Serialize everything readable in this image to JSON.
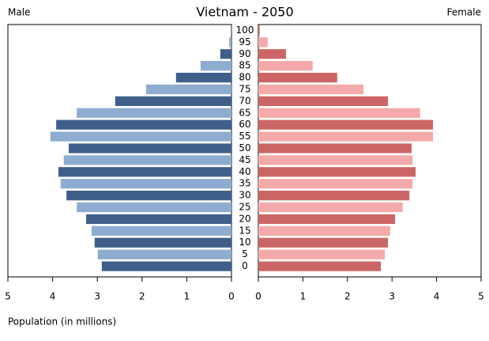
{
  "chart_data": {
    "type": "pyramid",
    "title": "Vietnam - 2050",
    "left_label": "Male",
    "right_label": "Female",
    "xlabel": "Population (in millions)",
    "categories": [
      "0",
      "5",
      "10",
      "15",
      "20",
      "25",
      "30",
      "35",
      "40",
      "45",
      "50",
      "55",
      "60",
      "65",
      "70",
      "75",
      "80",
      "85",
      "90",
      "95",
      "100"
    ],
    "series": [
      {
        "name": "Male",
        "side": "left",
        "colors": [
          "#3f5f8a",
          "#8eacd0"
        ],
        "values": [
          2.9,
          2.99,
          3.06,
          3.13,
          3.25,
          3.46,
          3.69,
          3.82,
          3.87,
          3.75,
          3.64,
          4.05,
          3.92,
          3.46,
          2.6,
          1.91,
          1.24,
          0.69,
          0.25,
          0.05,
          0.01
        ]
      },
      {
        "name": "Female",
        "side": "right",
        "colors": [
          "#cc6666",
          "#f4aaaa"
        ],
        "values": [
          2.75,
          2.84,
          2.91,
          2.96,
          3.07,
          3.24,
          3.39,
          3.46,
          3.53,
          3.46,
          3.44,
          3.92,
          3.92,
          3.63,
          2.91,
          2.36,
          1.77,
          1.22,
          0.62,
          0.21,
          0.03
        ]
      }
    ],
    "xlim": [
      0,
      5
    ],
    "xticks": [
      0,
      1,
      2,
      3,
      4,
      5
    ]
  }
}
